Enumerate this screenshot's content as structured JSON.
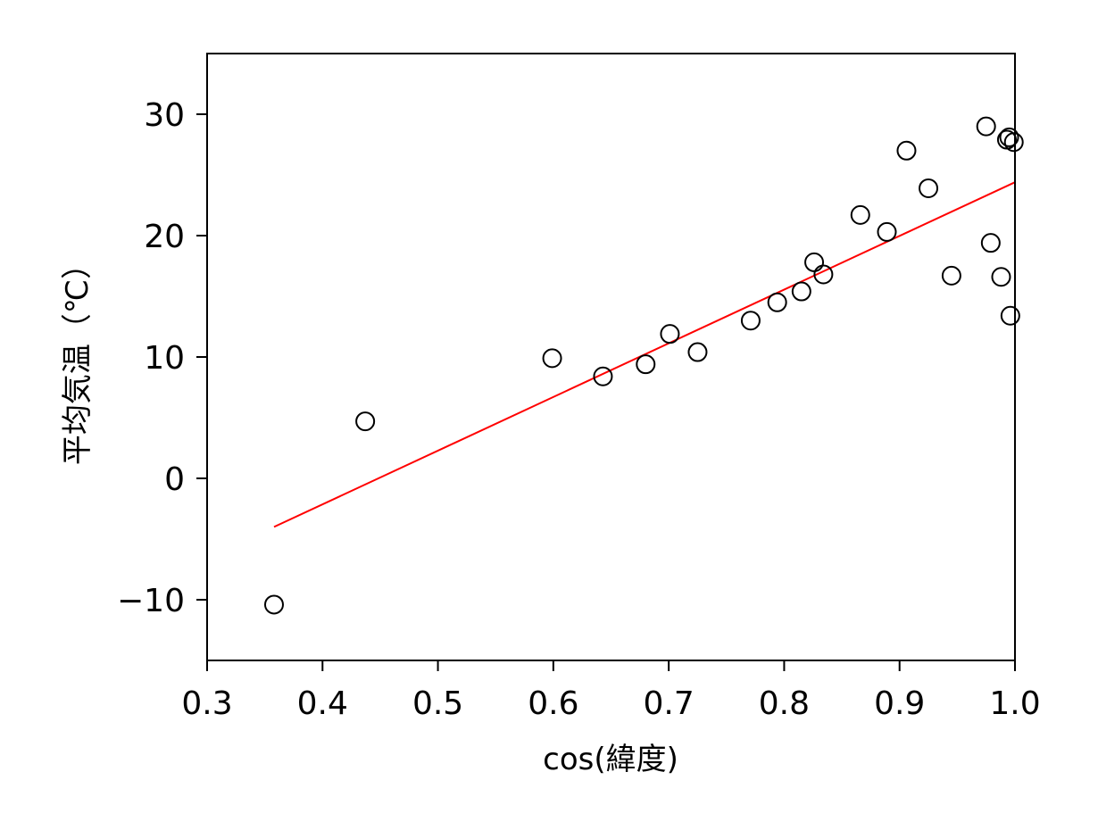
{
  "chart_data": {
    "type": "scatter",
    "title": "",
    "xlabel": "cos(緯度)",
    "ylabel": "平均気温（℃）",
    "xlim": [
      0.3,
      1.0
    ],
    "ylim": [
      -15,
      35
    ],
    "xticks": [
      0.3,
      0.4,
      0.5,
      0.6,
      0.7,
      0.8,
      0.9,
      1.0
    ],
    "xtick_labels": [
      "0.3",
      "0.4",
      "0.5",
      "0.6",
      "0.7",
      "0.8",
      "0.9",
      "1.0"
    ],
    "yticks": [
      -10,
      0,
      10,
      20,
      30
    ],
    "ytick_labels": [
      "−10",
      "0",
      "10",
      "20",
      "30"
    ],
    "grid": false,
    "points": [
      {
        "x": 0.358,
        "y": -10.4
      },
      {
        "x": 0.437,
        "y": 4.7
      },
      {
        "x": 0.599,
        "y": 9.9
      },
      {
        "x": 0.643,
        "y": 8.4
      },
      {
        "x": 0.68,
        "y": 9.4
      },
      {
        "x": 0.701,
        "y": 11.9
      },
      {
        "x": 0.725,
        "y": 10.4
      },
      {
        "x": 0.771,
        "y": 13.0
      },
      {
        "x": 0.794,
        "y": 14.5
      },
      {
        "x": 0.815,
        "y": 15.4
      },
      {
        "x": 0.826,
        "y": 17.8
      },
      {
        "x": 0.834,
        "y": 16.8
      },
      {
        "x": 0.866,
        "y": 21.7
      },
      {
        "x": 0.889,
        "y": 20.3
      },
      {
        "x": 0.906,
        "y": 27.0
      },
      {
        "x": 0.925,
        "y": 23.9
      },
      {
        "x": 0.945,
        "y": 16.7
      },
      {
        "x": 0.975,
        "y": 29.0
      },
      {
        "x": 0.979,
        "y": 19.4
      },
      {
        "x": 0.988,
        "y": 16.6
      },
      {
        "x": 0.993,
        "y": 27.9
      },
      {
        "x": 0.995,
        "y": 28.1
      },
      {
        "x": 0.996,
        "y": 13.4
      },
      {
        "x": 0.999,
        "y": 27.7
      }
    ],
    "fit_line": {
      "x": [
        0.358,
        1.0
      ],
      "y": [
        -4.0,
        24.4
      ],
      "color": "#ff0000"
    },
    "marker": {
      "shape": "open-circle",
      "color": "#000000"
    }
  }
}
